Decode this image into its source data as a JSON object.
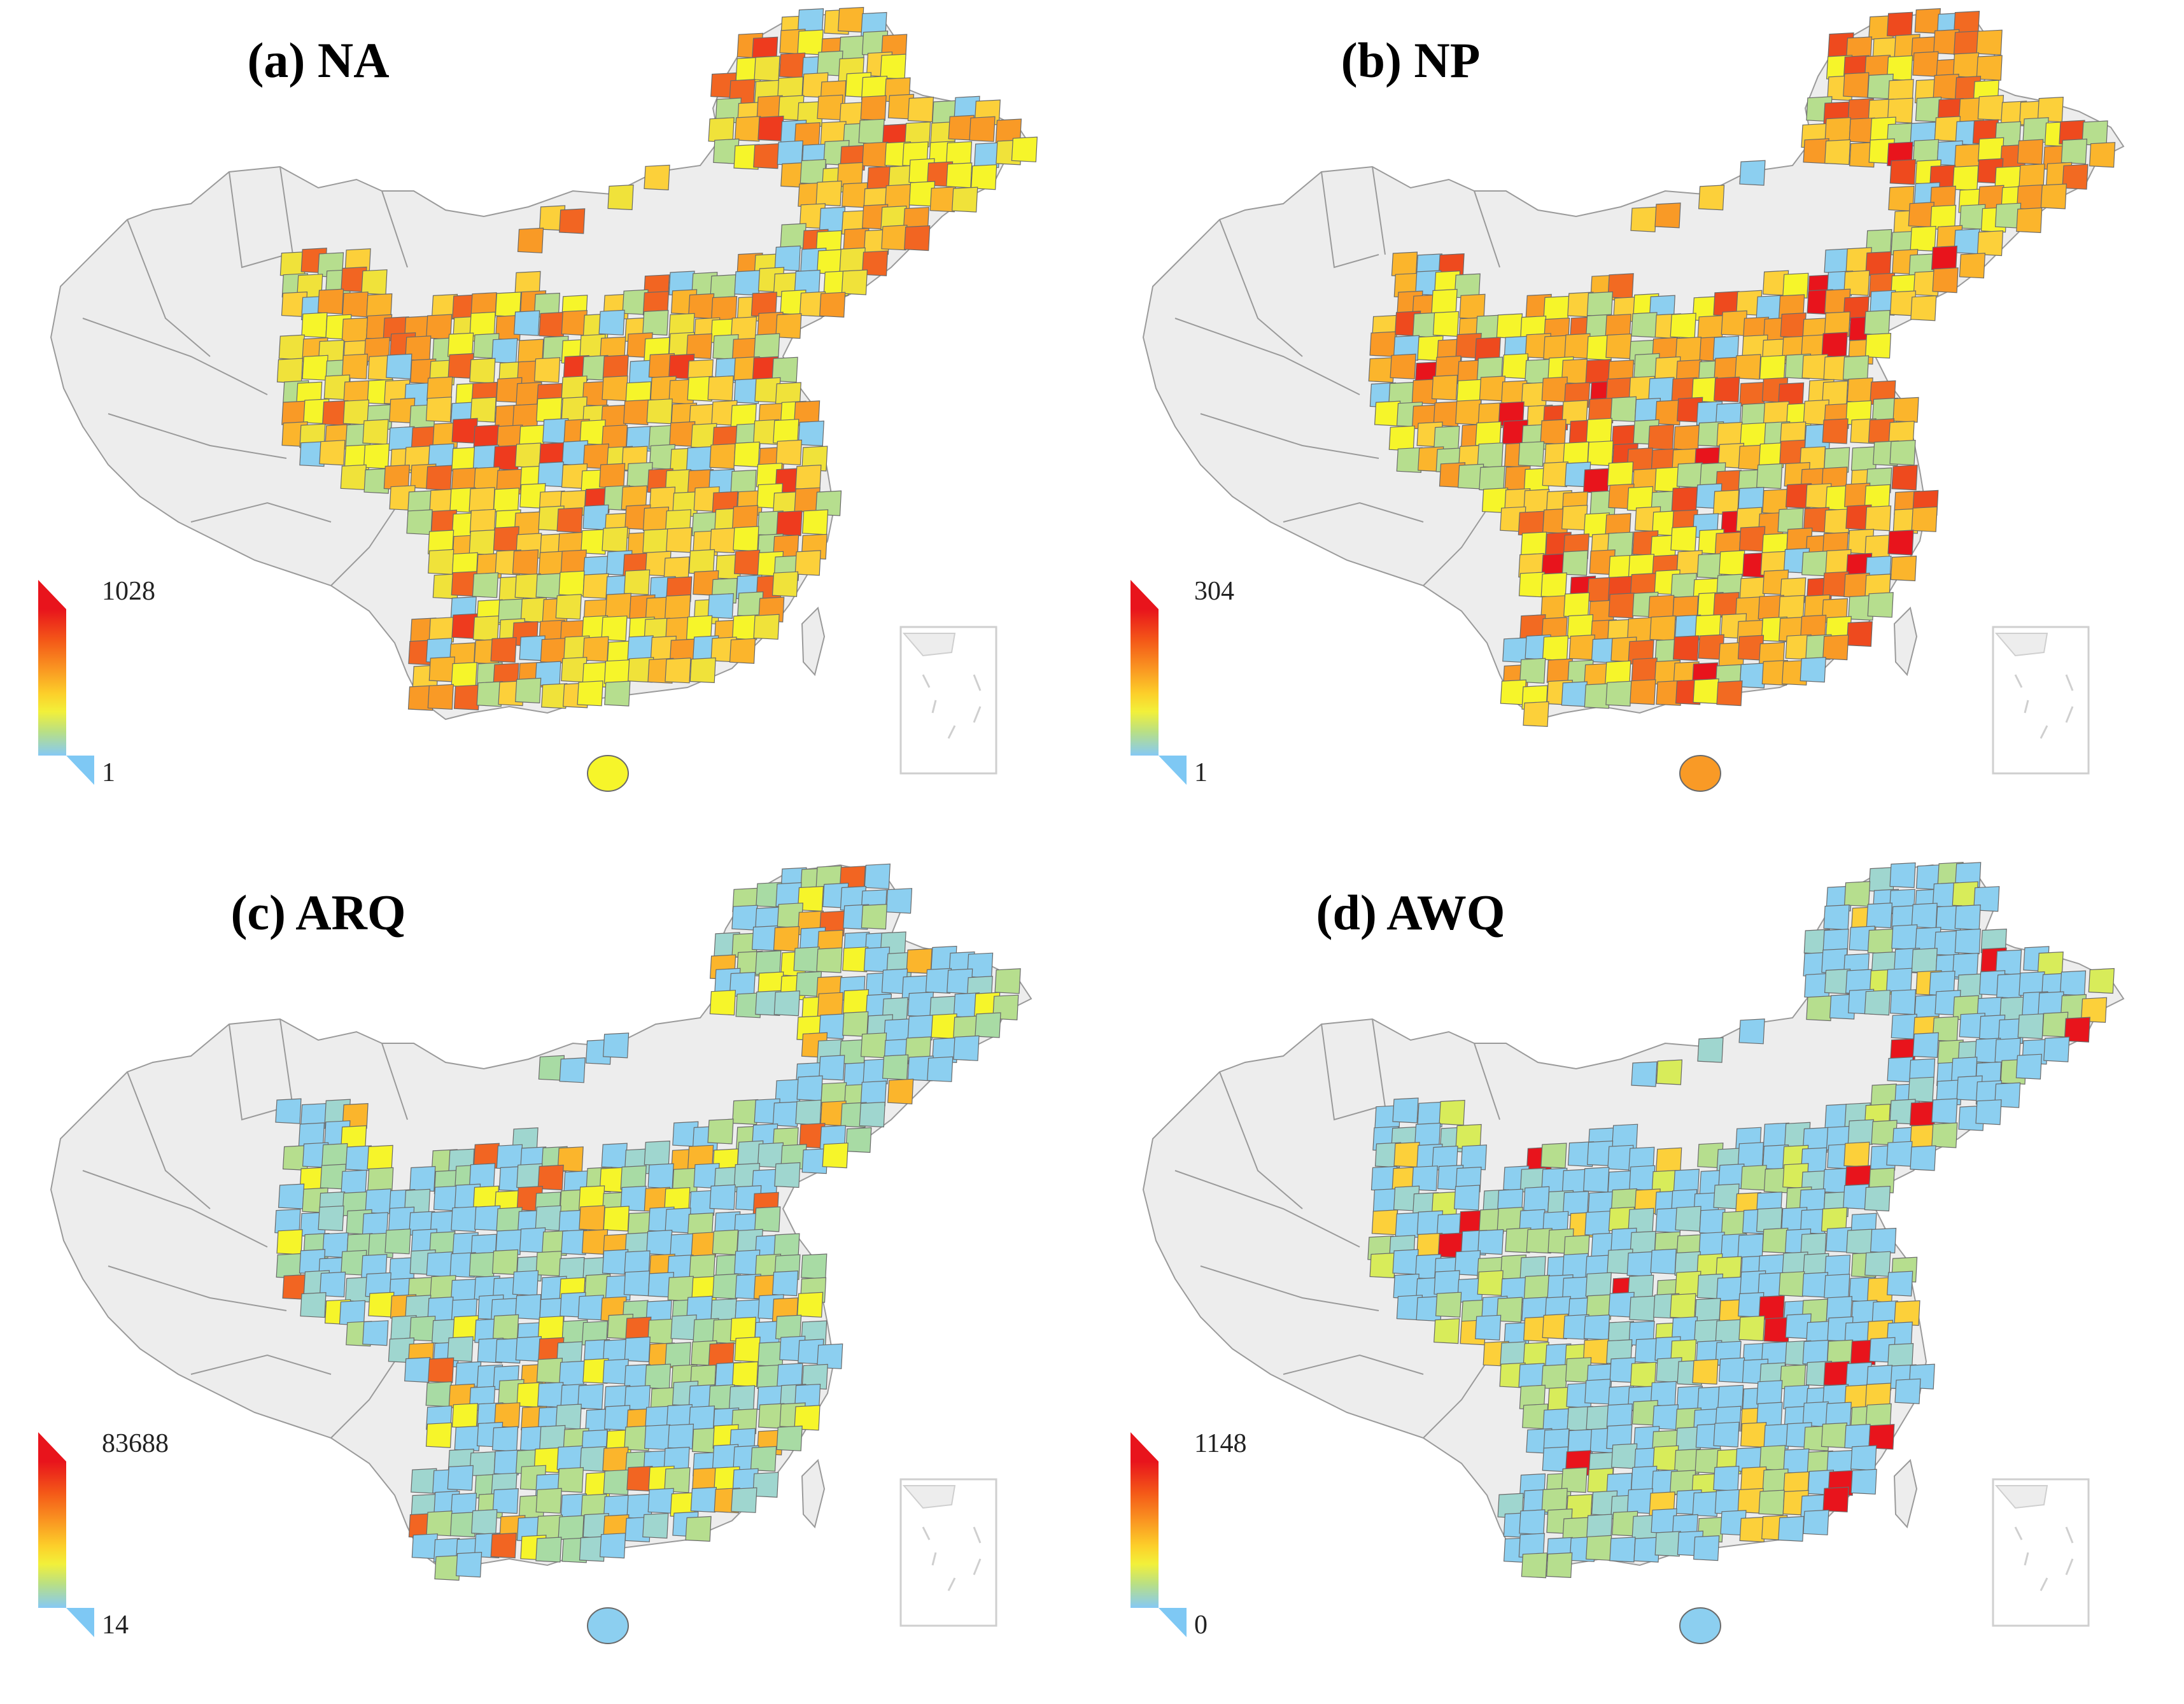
{
  "panels": [
    {
      "id": "a",
      "title": "(a) NA",
      "legend": {
        "max": "1028",
        "min": "1"
      },
      "palette": {
        "base": [
          "#f6f52a",
          "#f0e23a",
          "#fcd03a",
          "#fbb52c",
          "#f99a26",
          "#b6de8e"
        ],
        "hot": [
          "#f26522",
          "#ee3b1e"
        ],
        "cool": "#8ccff0"
      }
    },
    {
      "id": "b",
      "title": "(b) NP",
      "legend": {
        "max": "304",
        "min": "1"
      },
      "palette": {
        "base": [
          "#f99a26",
          "#f26a22",
          "#fcd03a",
          "#f6f52a",
          "#fbb52c",
          "#b6de8e"
        ],
        "hot": [
          "#ee4a1e",
          "#e8141c"
        ],
        "cool": "#8ccff0"
      }
    },
    {
      "id": "c",
      "title": "(c) ARQ",
      "legend": {
        "max": "83688",
        "min": "14"
      },
      "palette": {
        "base": [
          "#8ccff0",
          "#8ccff0",
          "#9fd6cf",
          "#b6de8e",
          "#8ccff0",
          "#a8dba4"
        ],
        "hot": [
          "#fbb52c",
          "#f26522"
        ],
        "cool": "#f6f52a"
      }
    },
    {
      "id": "d",
      "title": "(d) AWQ",
      "legend": {
        "max": "1148",
        "min": "0"
      },
      "palette": {
        "base": [
          "#8ccff0",
          "#8ccff0",
          "#8ccff0",
          "#9fd6cf",
          "#8ccff0",
          "#b6de8e"
        ],
        "hot": [
          "#fcd03a",
          "#e8141c"
        ],
        "cool": "#d8ec5a"
      }
    }
  ]
}
